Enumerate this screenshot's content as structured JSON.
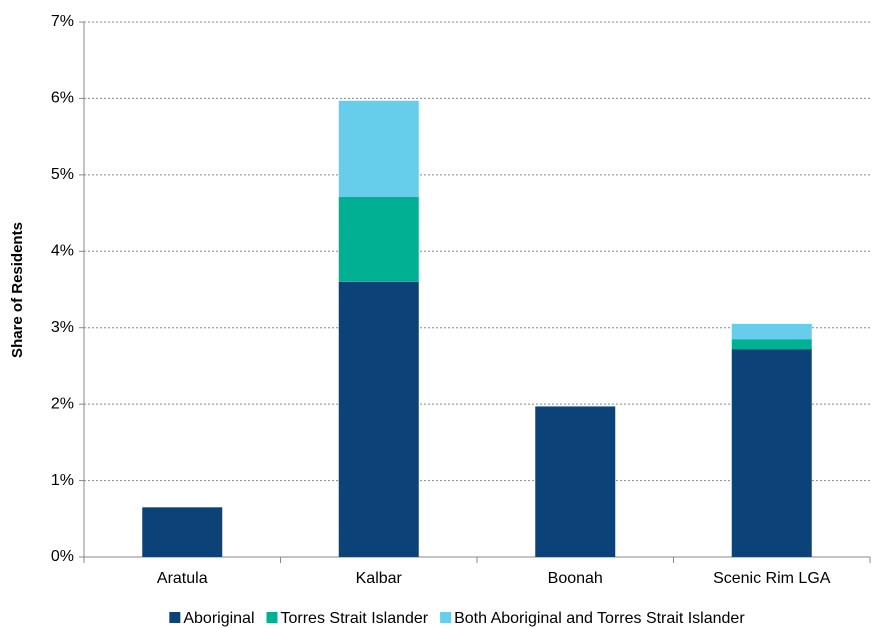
{
  "chart_data": {
    "type": "stacked_bar",
    "y_label": "Share of Residents",
    "categories": [
      "Aratula",
      "Kalbar",
      "Boonah",
      "Scenic Rim LGA"
    ],
    "series": [
      {
        "name": "Aboriginal",
        "color": "#0b4278",
        "values": [
          0.65,
          3.6,
          1.97,
          2.72
        ]
      },
      {
        "name": "Torres Strait Islander",
        "color": "#00b092",
        "values": [
          0,
          1.11,
          0,
          0.13
        ]
      },
      {
        "name": "Both Aboriginal and Torres Strait Islander",
        "color": "#66cdea",
        "values": [
          0,
          1.26,
          0,
          0.2
        ]
      }
    ],
    "ylim": [
      0,
      7
    ],
    "yticks": [
      {
        "value": 0,
        "label": "0%"
      },
      {
        "value": 1,
        "label": "1%"
      },
      {
        "value": 2,
        "label": "2%"
      },
      {
        "value": 3,
        "label": "3%"
      },
      {
        "value": 4,
        "label": "4%"
      },
      {
        "value": 5,
        "label": "5%"
      },
      {
        "value": 6,
        "label": "6%"
      },
      {
        "value": 7,
        "label": "7%"
      }
    ],
    "grid": true,
    "legend": "bottom"
  }
}
